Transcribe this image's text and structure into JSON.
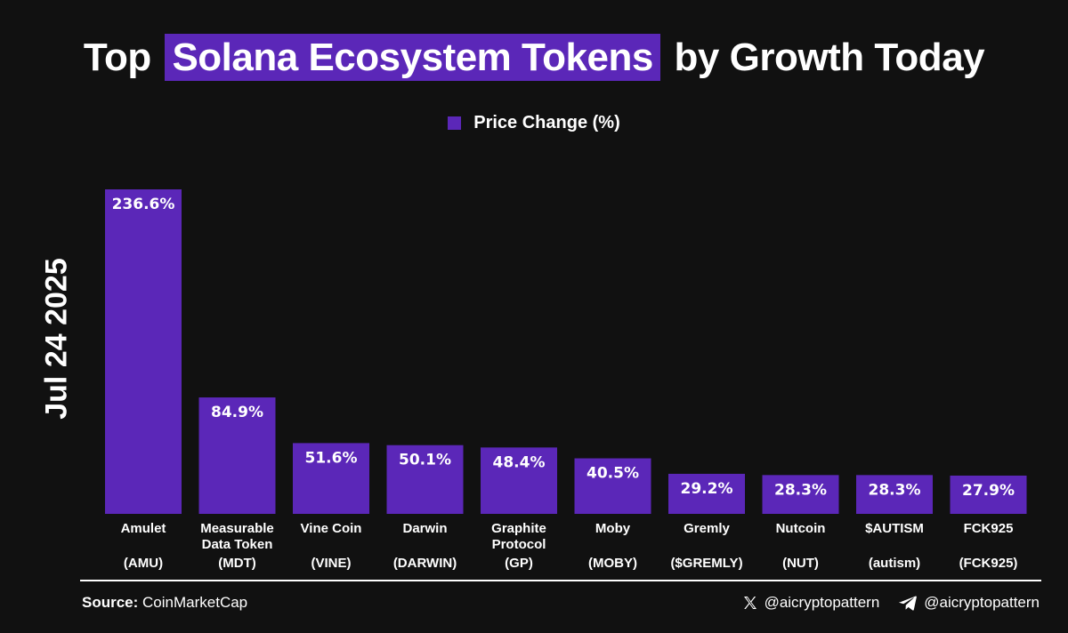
{
  "header": {
    "title_prefix": "Top",
    "title_highlight": "Solana Ecosystem Tokens",
    "title_suffix": "by Growth Today"
  },
  "colors": {
    "bar": "#5b27b8",
    "background": "#111111",
    "text": "#ffffff"
  },
  "chart_data": {
    "type": "bar",
    "title": "Top Solana Ecosystem Tokens by Growth Today",
    "ylabel": "Jul 24 2025",
    "legend": "Price Change (%)",
    "legend_position": "top-center",
    "grid": false,
    "ylim": [
      0,
      250
    ],
    "categories": [
      [
        "Amulet",
        "",
        "(AMU)"
      ],
      [
        "Measurable",
        "Data Token",
        "(MDT)"
      ],
      [
        "Vine Coin",
        "",
        "(VINE)"
      ],
      [
        "Darwin",
        "",
        "(DARWIN)"
      ],
      [
        "Graphite",
        "Protocol",
        "(GP)"
      ],
      [
        "Moby",
        "",
        "(MOBY)"
      ],
      [
        "Gremly",
        "",
        "($GREMLY)"
      ],
      [
        "Nutcoin",
        "",
        "(NUT)"
      ],
      [
        "$AUTISM",
        "",
        "(autism)"
      ],
      [
        "FCK925",
        "",
        "(FCK925)"
      ]
    ],
    "series": [
      {
        "name": "Price Change (%)",
        "values": [
          236.6,
          84.9,
          51.6,
          50.1,
          48.4,
          40.5,
          29.2,
          28.3,
          28.3,
          27.9
        ],
        "labels": [
          "236.6%",
          "84.9%",
          "51.6%",
          "50.1%",
          "48.4%",
          "40.5%",
          "29.2%",
          "28.3%",
          "28.3%",
          "27.9%"
        ]
      }
    ]
  },
  "footer": {
    "source_label": "Source:",
    "source_value": "CoinMarketCap",
    "x_handle": "@aicryptopattern",
    "telegram_handle": "@aicryptopattern"
  }
}
